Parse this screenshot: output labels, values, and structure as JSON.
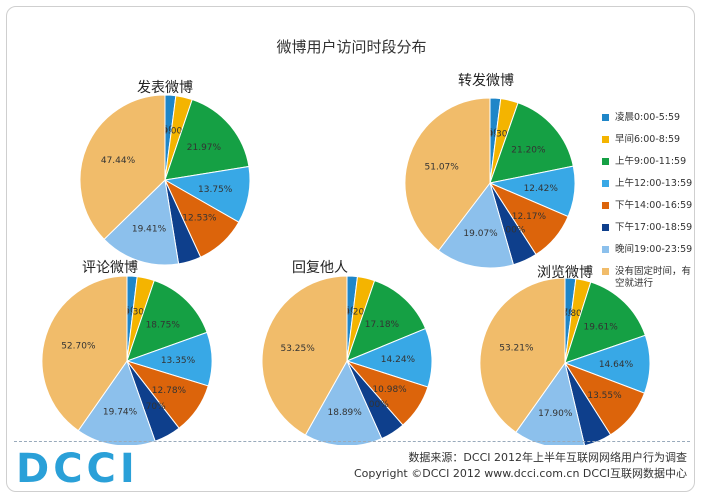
{
  "title": "微博用户访问时段分布",
  "legend": [
    {
      "label": "凌晨0:00-5:59",
      "color": "#1f86c8"
    },
    {
      "label": "早间6:00-8:59",
      "color": "#f4b400"
    },
    {
      "label": "上午9:00-11:59",
      "color": "#15a044"
    },
    {
      "label": "上午12:00-13:59",
      "color": "#38a8e6"
    },
    {
      "label": "下午14:00-16:59",
      "color": "#dc640b"
    },
    {
      "label": "下午17:00-18:59",
      "color": "#0e3f8c"
    },
    {
      "label": "晚间19:00-23:59",
      "color": "#8cc0ec"
    },
    {
      "label": "没有固定时间，有空就进行",
      "color": "#f1bc6a"
    }
  ],
  "chart_data": [
    {
      "type": "pie",
      "title": "发表微博",
      "labels": [
        "凌晨0:00-5:59",
        "早间6:00-8:59",
        "上午9:00-11:59",
        "上午12:00-13:59",
        "下午14:00-16:59",
        "下午17:00-18:59",
        "晚间19:00-23:59",
        "没有固定时间，有空就进行"
      ],
      "values": [
        2.6,
        4.0,
        21.97,
        13.75,
        12.53,
        5.5,
        19.41,
        47.44
      ],
      "value_labels": [
        "2.60%",
        "4.00%",
        "21.97%",
        "13.75%",
        "12.53%",
        "",
        "19.41%",
        "47.44%"
      ]
    },
    {
      "type": "pie",
      "title": "转发微博",
      "labels": [
        "凌晨0:00-5:59",
        "早间6:00-8:59",
        "上午9:00-11:59",
        "上午12:00-13:59",
        "下午14:00-16:59",
        "下午17:00-18:59",
        "晚间19:00-23:59",
        "没有固定时间，有空就进行"
      ],
      "values": [
        2.6,
        4.3,
        21.2,
        12.42,
        12.17,
        6.0,
        19.07,
        51.07
      ],
      "value_labels": [
        "2.60%",
        "4.30%",
        "21.20%",
        "12.42%",
        "12.17%",
        "6.00%",
        "19.07%",
        "51.07%"
      ]
    },
    {
      "type": "pie",
      "title": "评论微博",
      "labels": [
        "凌晨0:00-5:59",
        "早间6:00-8:59",
        "上午9:00-11:59",
        "上午12:00-13:59",
        "下午14:00-16:59",
        "下午17:00-18:59",
        "晚间19:00-23:59",
        "没有固定时间，有空就进行"
      ],
      "values": [
        2.5,
        4.3,
        18.75,
        13.35,
        12.78,
        6.7,
        19.74,
        52.7
      ],
      "value_labels": [
        "2.50%",
        "4.30%",
        "18.75%",
        "13.35%",
        "12.78%",
        "6.70%",
        "19.74%",
        "52.70%"
      ]
    },
    {
      "type": "pie",
      "title": "回复他人",
      "labels": [
        "凌晨0:00-5:59",
        "早间6:00-8:59",
        "上午9:00-11:59",
        "上午12:00-13:59",
        "下午14:00-16:59",
        "下午17:00-18:59",
        "晚间19:00-23:59",
        "没有固定时间，有空就进行"
      ],
      "values": [
        2.5,
        4.2,
        17.18,
        14.24,
        10.98,
        6.0,
        18.89,
        53.25
      ],
      "value_labels": [
        "2.50%",
        "4.20%",
        "17.18%",
        "14.24%",
        "10.98%",
        "6.00%",
        "18.89%",
        "53.25%"
      ]
    },
    {
      "type": "pie",
      "title": "浏览微博",
      "labels": [
        "凌晨0:00-5:59",
        "早间6:00-8:59",
        "上午9:00-11:59",
        "上午12:00-13:59",
        "下午14:00-16:59",
        "下午17:00-18:59",
        "晚间19:00-23:59",
        "没有固定时间，有空就进行"
      ],
      "values": [
        2.7,
        3.8,
        19.61,
        14.64,
        13.55,
        7.0,
        17.9,
        53.21
      ],
      "value_labels": [
        "2.70%",
        "3.80%",
        "19.61%",
        "14.64%",
        "13.55%",
        "",
        "17.90%",
        "53.21%"
      ]
    }
  ],
  "footer": {
    "logo_text": "DCCI",
    "source_line": "数据来源：DCCI 2012年上半年互联网网络用户行为调查",
    "copyright_line": "Copyright ©DCCI 2012  www.dcci.com.cn      DCCI互联网数据中心"
  }
}
